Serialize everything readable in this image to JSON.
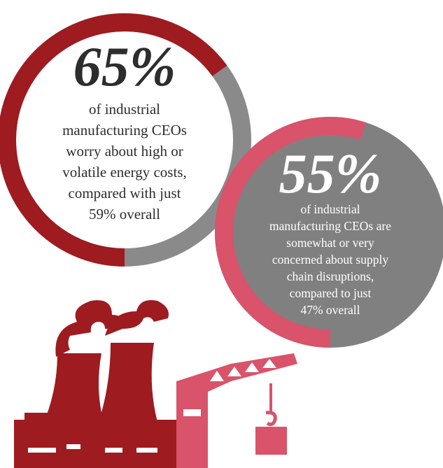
{
  "stats": [
    {
      "value": 65,
      "label": "65%",
      "lines": [
        "of industrial",
        "manufacturing CEOs",
        "worry about high or",
        "volatile energy costs,",
        "compared with just",
        "59% overall"
      ]
    },
    {
      "value": 55,
      "label": "55%",
      "lines": [
        "of industrial",
        "manufacturing CEOs are",
        "somewhat or very",
        "concerned about supply",
        "chain disruptions,",
        "compared to just",
        "47% overall"
      ]
    }
  ]
}
